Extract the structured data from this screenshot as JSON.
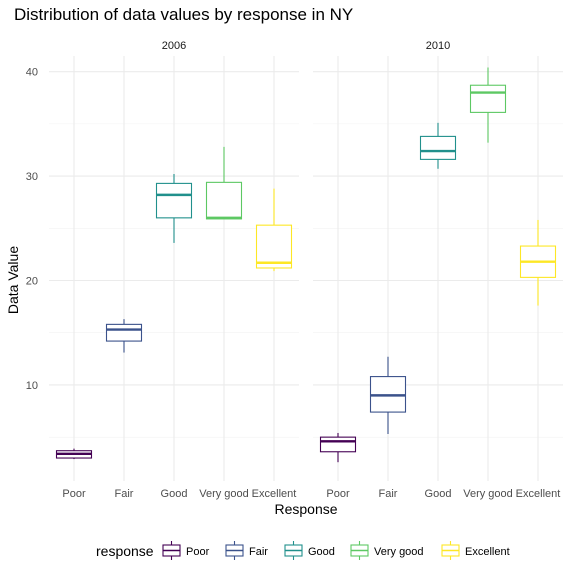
{
  "chart_data": {
    "type": "box",
    "title": "Distribution of data values by response in NY",
    "xlabel": "Response",
    "ylabel": "Data Value",
    "ylim": [
      0.8,
      41.5
    ],
    "yticks": [
      10,
      20,
      30,
      40
    ],
    "categories": [
      "Poor",
      "Fair",
      "Good",
      "Very good",
      "Excellent"
    ],
    "colors": {
      "Poor": "#440154",
      "Fair": "#3B528B",
      "Good": "#21908C",
      "Very good": "#5DC863",
      "Excellent": "#FDE725"
    },
    "grid": true,
    "legend_position": "bottom",
    "legend_title": "response",
    "panels": [
      {
        "label": "2006",
        "boxes": [
          {
            "category": "Poor",
            "min": 2.9,
            "q1": 3.0,
            "median": 3.4,
            "q3": 3.7,
            "max": 3.9
          },
          {
            "category": "Fair",
            "min": 13.1,
            "q1": 14.2,
            "median": 15.3,
            "q3": 15.8,
            "max": 16.3
          },
          {
            "category": "Good",
            "min": 23.6,
            "q1": 26.0,
            "median": 28.2,
            "q3": 29.3,
            "max": 30.2
          },
          {
            "category": "Very good",
            "min": 25.9,
            "q1": 25.9,
            "median": 26.0,
            "q3": 29.4,
            "max": 32.8
          },
          {
            "category": "Excellent",
            "min": 20.9,
            "q1": 21.2,
            "median": 21.7,
            "q3": 25.3,
            "max": 28.8
          }
        ]
      },
      {
        "label": "2010",
        "boxes": [
          {
            "category": "Poor",
            "min": 2.6,
            "q1": 3.6,
            "median": 4.6,
            "q3": 5.0,
            "max": 5.4
          },
          {
            "category": "Fair",
            "min": 5.3,
            "q1": 7.4,
            "median": 9.0,
            "q3": 10.8,
            "max": 12.7
          },
          {
            "category": "Good",
            "min": 30.7,
            "q1": 31.6,
            "median": 32.4,
            "q3": 33.8,
            "max": 35.1
          },
          {
            "category": "Very good",
            "min": 33.2,
            "q1": 36.1,
            "median": 38.0,
            "q3": 38.7,
            "max": 40.4
          },
          {
            "category": "Excellent",
            "min": 17.6,
            "q1": 20.3,
            "median": 21.8,
            "q3": 23.3,
            "max": 25.8
          }
        ]
      }
    ]
  }
}
